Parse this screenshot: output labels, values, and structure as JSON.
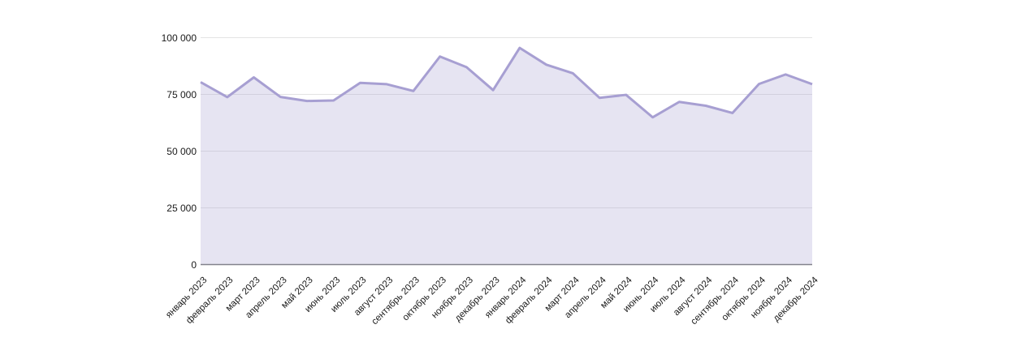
{
  "chart_data": {
    "type": "area",
    "title": "",
    "xlabel": "",
    "ylabel": "",
    "legend": "none",
    "grid": true,
    "ylim": [
      0,
      100000
    ],
    "yticks": [
      0,
      25000,
      50000,
      75000,
      100000
    ],
    "ytick_labels": [
      "0",
      "25 000",
      "50 000",
      "75 000",
      "100 000"
    ],
    "categories": [
      "январь 2023",
      "февраль 2023",
      "март 2023",
      "апрель 2023",
      "май 2023",
      "июнь 2023",
      "июль 2023",
      "август 2023",
      "сентябрь 2023",
      "октябрь 2023",
      "ноябрь 2023",
      "декабрь 2023",
      "январь 2024",
      "февраль 2024",
      "март 2024",
      "апрель 2024",
      "май 2024",
      "июнь 2024",
      "июль 2024",
      "август 2024",
      "сентябрь 2024",
      "октябрь 2024",
      "ноябрь 2024",
      "декабрь 2024"
    ],
    "values": [
      80400,
      73800,
      82500,
      73900,
      72100,
      72300,
      80100,
      79500,
      76500,
      91700,
      87000,
      76900,
      95500,
      88100,
      84300,
      73500,
      74800,
      64900,
      71700,
      70000,
      66800,
      79600,
      83800,
      79500
    ],
    "colors": {
      "line": "#a79fd2",
      "fill": "rgba(167,159,210,0.28)",
      "gridline": "#e3e3e3",
      "baseline": "#82828c",
      "tick_text": "#1a1a1a",
      "background": "#ffffff"
    }
  }
}
